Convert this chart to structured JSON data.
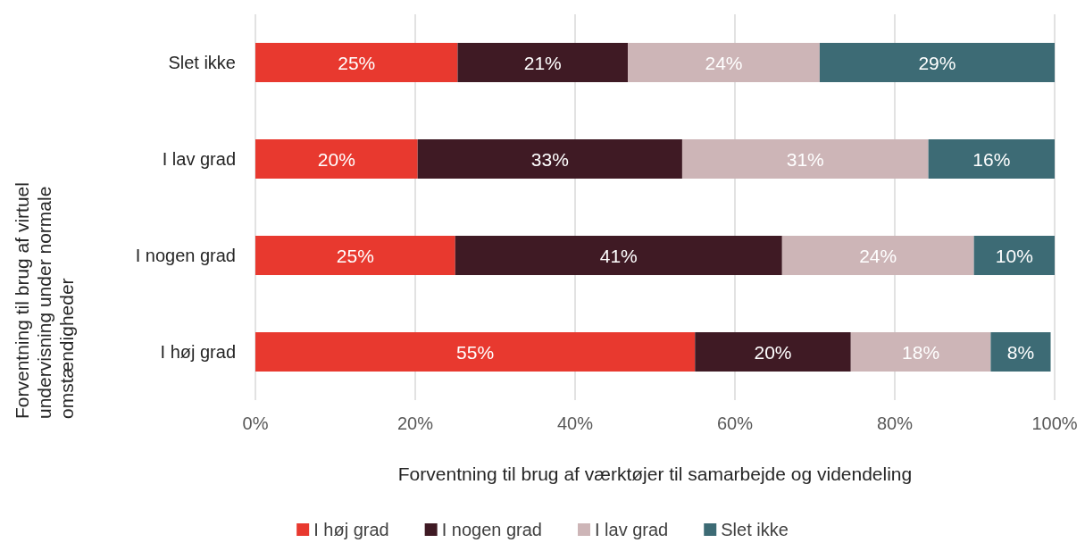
{
  "chart_data": {
    "type": "bar",
    "orientation": "horizontal",
    "stacked": true,
    "xlabel": "Forventning til brug af værktøjer til samarbejde og videndeling",
    "ylabel": "Forventning til brug af virtuel undervisning under normale omstændigheder",
    "categories": [
      "Slet ikke",
      "I lav grad",
      "I nogen grad",
      "I høj grad"
    ],
    "series": [
      {
        "name": "I høj grad",
        "color": "#e8392f",
        "values": [
          25.3,
          20.3,
          25.0,
          55.0
        ],
        "value_labels": [
          "25%",
          "20%",
          "25%",
          "55%"
        ]
      },
      {
        "name": "I nogen grad",
        "color": "#3f1a24",
        "values": [
          21.3,
          33.1,
          40.9,
          19.5
        ],
        "value_labels": [
          "21%",
          "33%",
          "41%",
          "20%"
        ]
      },
      {
        "name": "I lav grad",
        "color": "#cdb5b7",
        "values": [
          24.0,
          30.8,
          24.0,
          17.5
        ],
        "value_labels": [
          "24%",
          "31%",
          "24%",
          "18%"
        ]
      },
      {
        "name": "Slet ikke",
        "color": "#3d6b75",
        "values": [
          29.4,
          15.8,
          10.1,
          7.5
        ],
        "value_labels": [
          "29%",
          "16%",
          "10%",
          "8%"
        ]
      }
    ],
    "xlim": [
      0,
      100
    ],
    "xticks": [
      {
        "value": 0,
        "label": "0%"
      },
      {
        "value": 20,
        "label": "20%"
      },
      {
        "value": 40,
        "label": "40%"
      },
      {
        "value": 60,
        "label": "60%"
      },
      {
        "value": 80,
        "label": "80%"
      },
      {
        "value": 100,
        "label": "100%"
      }
    ],
    "grid": "x",
    "legend": "bottom"
  }
}
